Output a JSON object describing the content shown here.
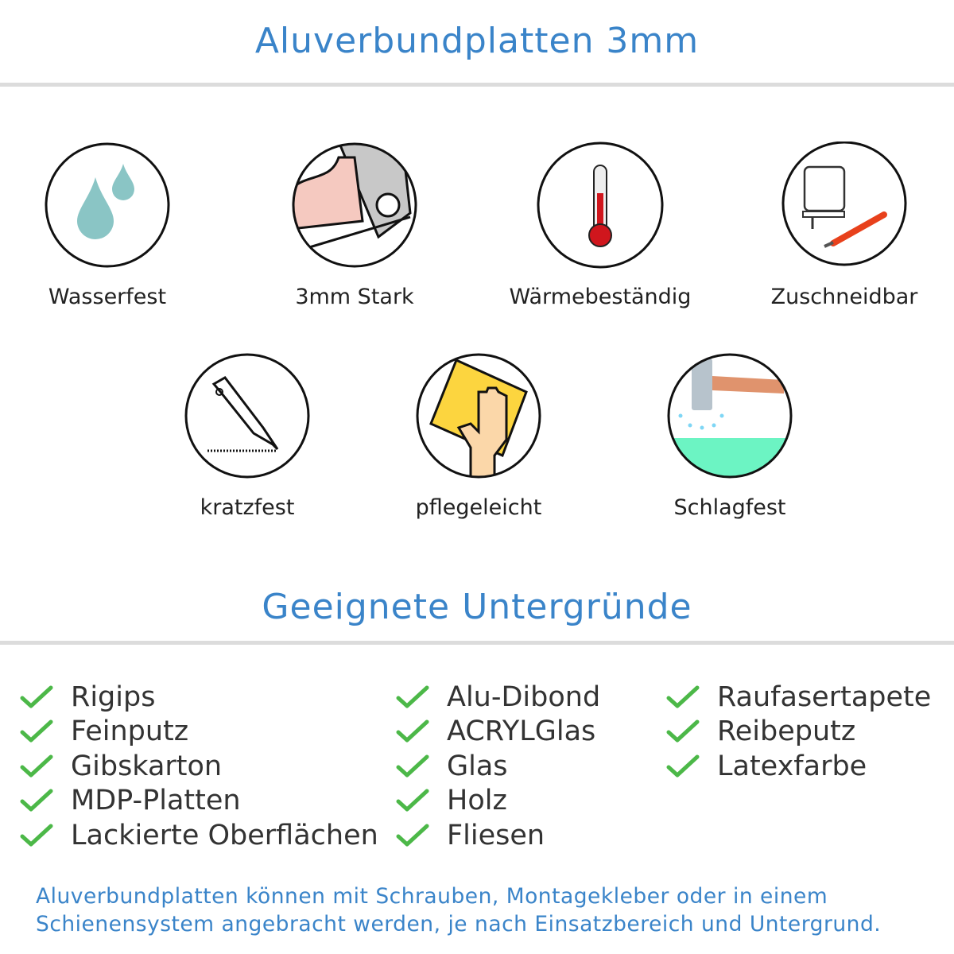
{
  "header": {
    "title": "Aluverbundplatten 3mm"
  },
  "features": [
    {
      "label": "Wasserfest",
      "icon": "water-drops-icon"
    },
    {
      "label": "3mm Stark",
      "icon": "strong-arm-icon"
    },
    {
      "label": "Wärmebeständig",
      "icon": "thermometer-icon"
    },
    {
      "label": "Zuschneidbar",
      "icon": "jigsaw-knife-icon"
    },
    {
      "label": "kratzfest",
      "icon": "cutter-knife-icon"
    },
    {
      "label": "pflegeleicht",
      "icon": "hand-cloth-icon"
    },
    {
      "label": "Schlagfest",
      "icon": "hammer-icon"
    }
  ],
  "surfaces": {
    "title": "Geeignete Untergründe",
    "columns": [
      [
        "Rigips",
        "Feinputz",
        "Gibskarton",
        "MDP-Platten",
        "Lackierte Oberflächen"
      ],
      [
        "Alu-Dibond",
        "ACRYLGlas",
        "Glas",
        "Holz",
        "Fliesen"
      ],
      [
        "Raufasertapete",
        "Reibeputz",
        "Latexfarbe"
      ]
    ]
  },
  "note": {
    "line1": "Aluverbundplatten können mit Schrauben, Montagekleber oder in einem",
    "line2": "Schienensystem angebracht werden, je nach Einsatzbereich und Untergrund."
  },
  "colors": {
    "accent": "#3a84c9",
    "check": "#4cb848"
  }
}
